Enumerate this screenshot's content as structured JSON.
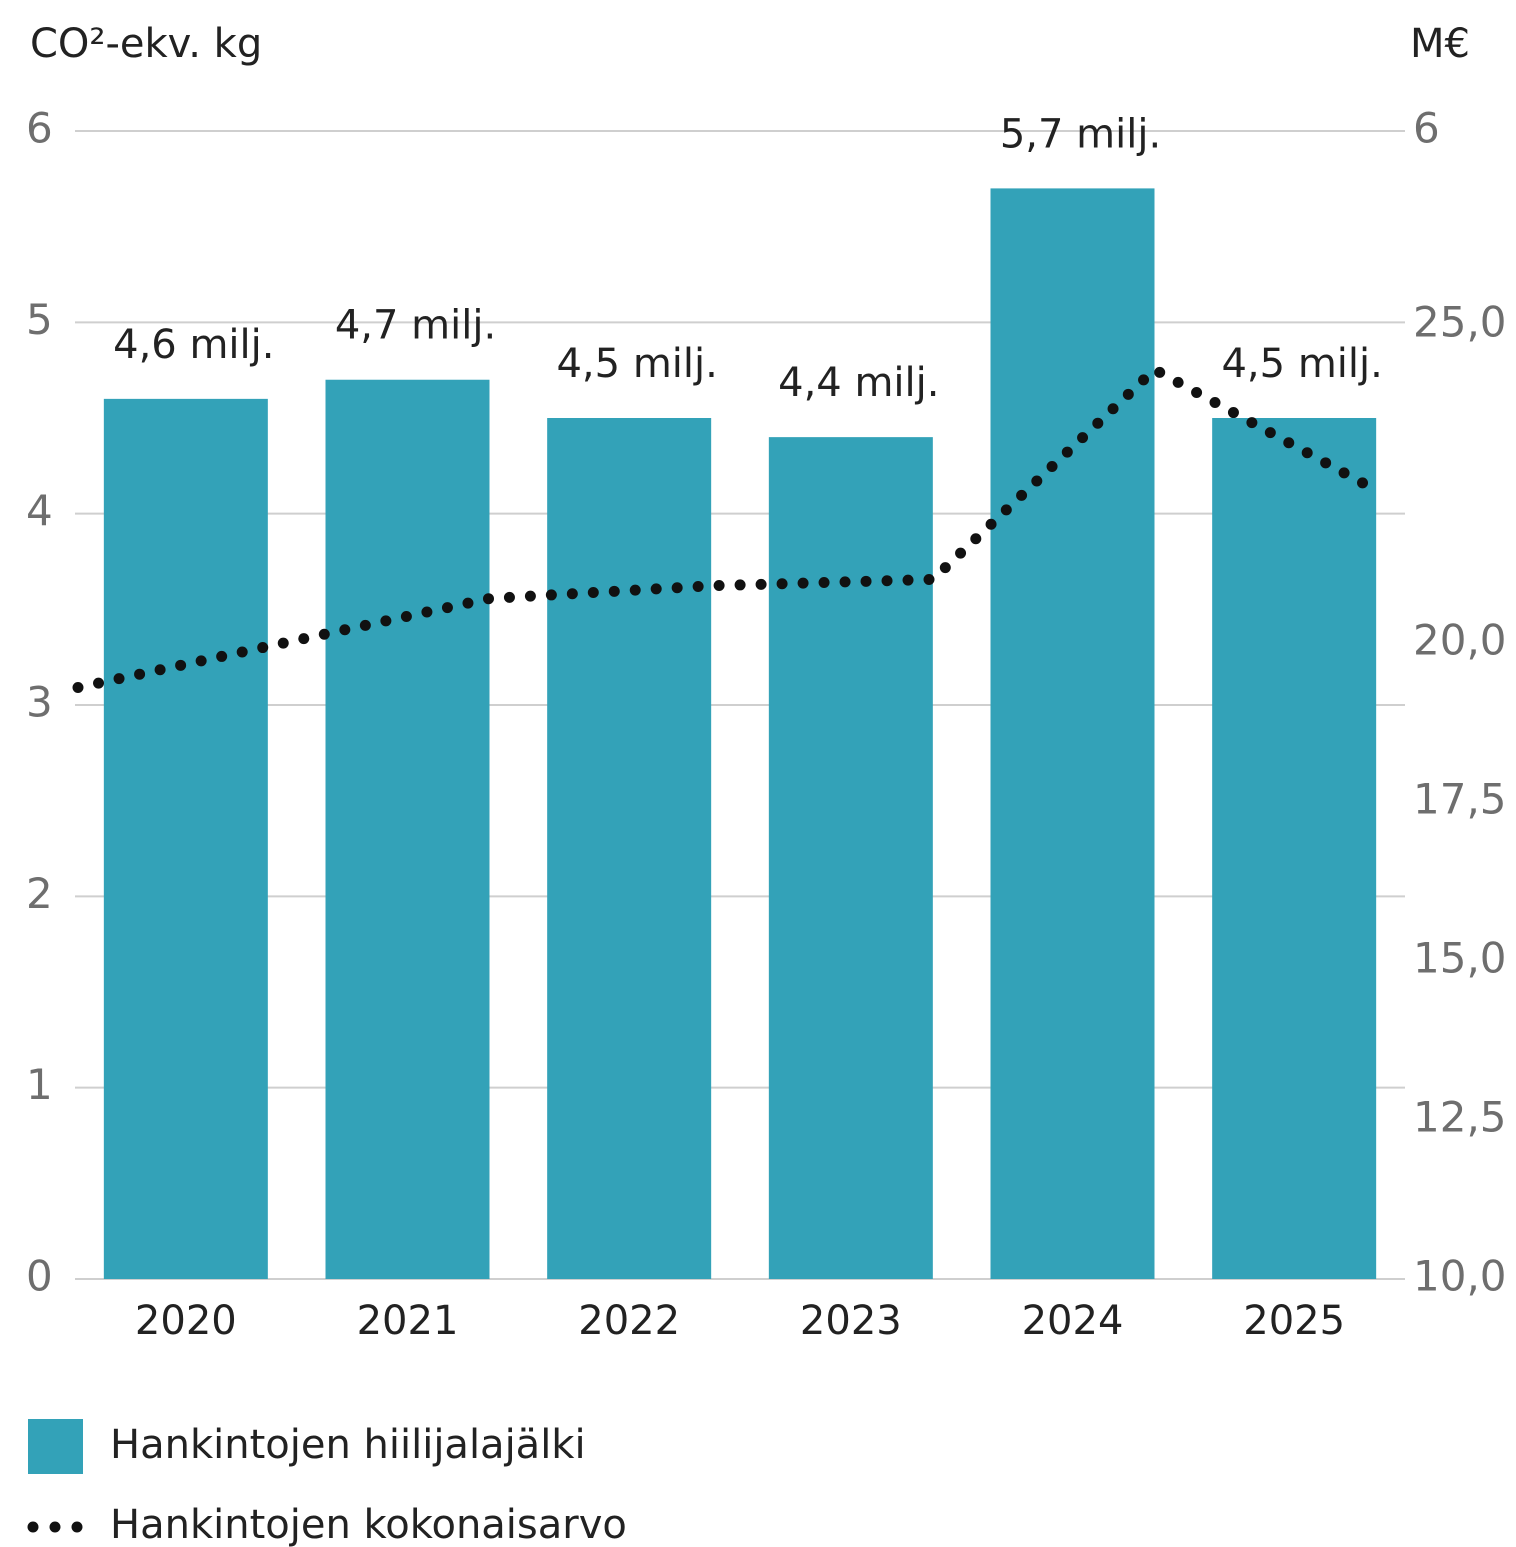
{
  "chart_data": {
    "type": "bar",
    "y_label": "CO²-ekv. kg",
    "y2_label": "M€",
    "y2_top_label": "6",
    "categories": [
      "2020",
      "2021",
      "2022",
      "2023",
      "2024",
      "2025"
    ],
    "series": [
      {
        "name": "Hankintojen hiilijalajälki",
        "type": "bar",
        "color": "#33a2b8",
        "values": [
          4.6,
          4.7,
          4.5,
          4.4,
          5.7,
          4.5
        ],
        "value_labels": [
          "4,6 milj.",
          "4,7 milj.",
          "4,5 milj.",
          "4,4 milj.",
          "5,7 milj.",
          "4,5 milj."
        ]
      },
      {
        "name": "Hankintojen kokonaisarvo",
        "type": "line",
        "axis": "y2",
        "color": "#111111",
        "style": "dotted",
        "values": [
          19.3,
          20.7,
          20.9,
          21.0,
          24.3,
          22.4
        ]
      }
    ],
    "ylim": [
      0,
      6
    ],
    "yticks": [
      0,
      1,
      2,
      3,
      4,
      5,
      6
    ],
    "y2lim": [
      10,
      25
    ],
    "y2ticks": [
      {
        "value": 10,
        "label": "10,0"
      },
      {
        "value": 12.5,
        "label": "12,5"
      },
      {
        "value": 15,
        "label": "15,0"
      },
      {
        "value": 17.5,
        "label": "17,5"
      },
      {
        "value": 20,
        "label": "20,0"
      },
      {
        "value": 25,
        "label": "25,0"
      }
    ],
    "grid": true,
    "legend": "bottom-left"
  }
}
